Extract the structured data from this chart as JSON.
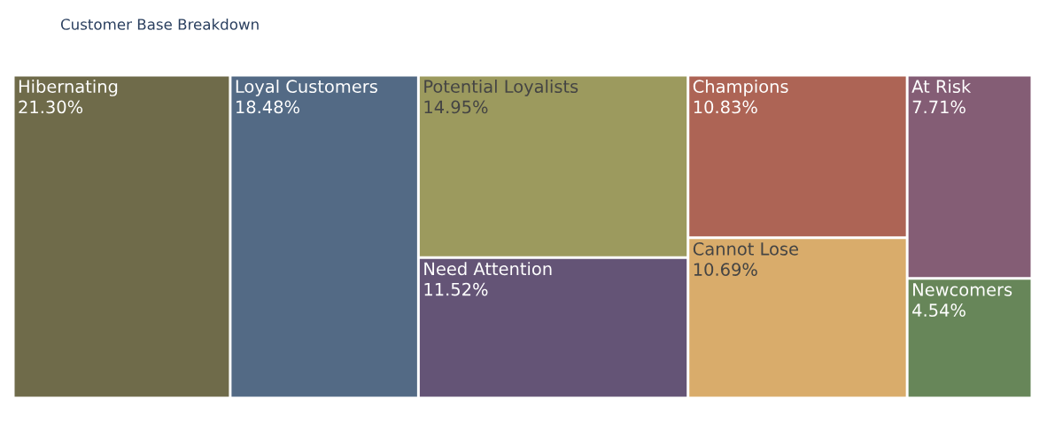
{
  "chart_data": {
    "type": "other",
    "title": "Customer Base Breakdown",
    "categories": [
      "Hibernating",
      "Loyal Customers",
      "Potential Loyalists",
      "Need Attention",
      "Champions",
      "Cannot Lose",
      "At Risk",
      "Newcomers"
    ],
    "values": [
      21.3,
      18.48,
      14.95,
      11.52,
      10.83,
      10.69,
      7.71,
      4.54
    ],
    "value_labels": [
      "21.30%",
      "18.48%",
      "14.95%",
      "11.52%",
      "10.83%",
      "10.69%",
      "7.71%",
      "4.54%"
    ],
    "colors": [
      "#6f6b4a",
      "#536a85",
      "#9c9a5e",
      "#645476",
      "#ad6455",
      "#d9ac6b",
      "#845d75",
      "#678659"
    ]
  }
}
